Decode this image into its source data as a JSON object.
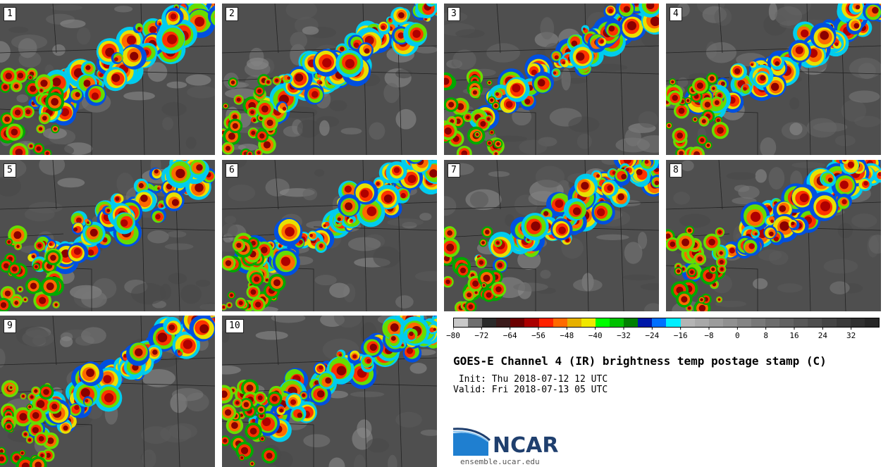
{
  "panels": [
    {
      "label": "1"
    },
    {
      "label": "2"
    },
    {
      "label": "3"
    },
    {
      "label": "4"
    },
    {
      "label": "5"
    },
    {
      "label": "6"
    },
    {
      "label": "7"
    },
    {
      "label": "8"
    },
    {
      "label": "9"
    },
    {
      "label": "10"
    }
  ],
  "colorbar": {
    "colors": [
      "#c8c8c8",
      "#6e6e6e",
      "#2a2a2a",
      "#3a1a1a",
      "#6b0000",
      "#aa0000",
      "#ff2200",
      "#ff6a00",
      "#e6b000",
      "#f0e800",
      "#00ff00",
      "#00c000",
      "#008000",
      "#0018a8",
      "#0070ff",
      "#00eeff",
      "#b4b4b4",
      "#a8a8a8",
      "#9c9c9c",
      "#909090",
      "#848484",
      "#787878",
      "#6c6c6c",
      "#626262",
      "#585858",
      "#4e4e4e",
      "#444444",
      "#3a3a3a",
      "#303030",
      "#262626"
    ],
    "ticks": [
      "−80",
      "−72",
      "−64",
      "−56",
      "−48",
      "−40",
      "−32",
      "−24",
      "−16",
      "−8",
      "0",
      "8",
      "16",
      "24",
      "32"
    ]
  },
  "title": "GOES-E Channel 4 (IR) brightness temp postage stamp (C)",
  "init": " Init: Thu 2018-07-12 12 UTC",
  "valid": "Valid: Fri 2018-07-13 05 UTC",
  "logo": {
    "text": "NCAR",
    "url": "ensemble.ucar.edu"
  }
}
